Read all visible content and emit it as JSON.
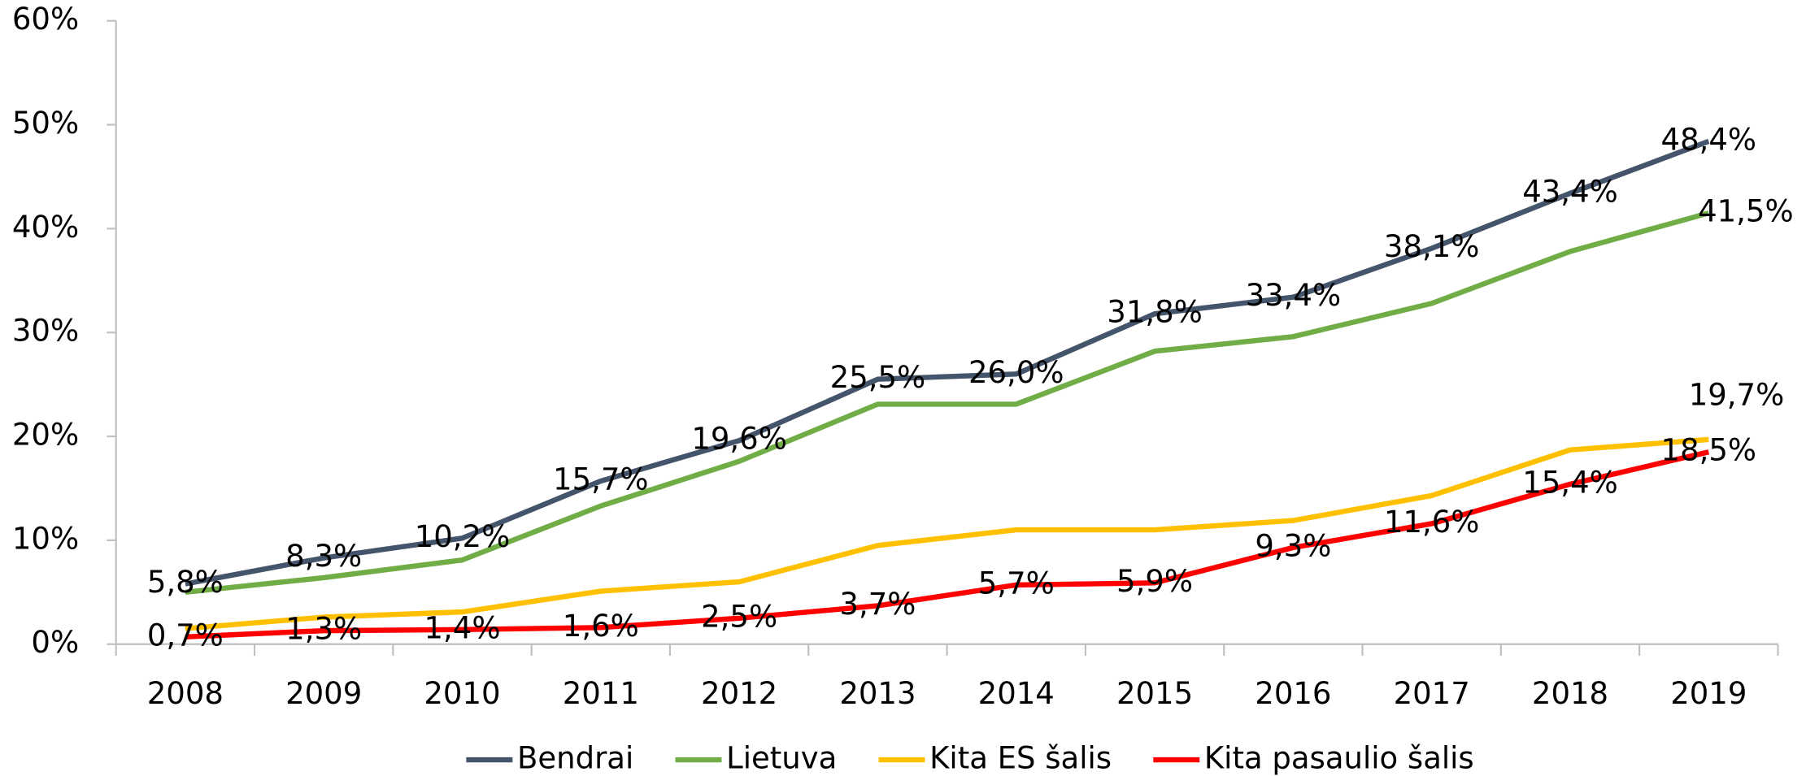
{
  "chart_data": {
    "type": "line",
    "categories": [
      "2008",
      "2009",
      "2010",
      "2011",
      "2012",
      "2013",
      "2014",
      "2015",
      "2016",
      "2017",
      "2018",
      "2019"
    ],
    "ylim": [
      0,
      60
    ],
    "yticks": [
      {
        "value": 0,
        "label": "0%"
      },
      {
        "value": 10,
        "label": "10%"
      },
      {
        "value": 20,
        "label": "20%"
      },
      {
        "value": 30,
        "label": "30%"
      },
      {
        "value": 40,
        "label": "40%"
      },
      {
        "value": 50,
        "label": "50%"
      },
      {
        "value": 60,
        "label": "60%"
      }
    ],
    "legend": "bottom",
    "series": [
      {
        "name": "Bendrai",
        "color": "#44546a",
        "values": [
          5.8,
          8.3,
          10.2,
          15.7,
          19.6,
          25.5,
          26.0,
          31.8,
          33.4,
          38.1,
          43.4,
          48.4
        ],
        "value_labels": [
          "5,8%",
          "8,3%",
          "10,2%",
          "15,7%",
          "19,6%",
          "25,5%",
          "26,0%",
          "31,8%",
          "33,4%",
          "38,1%",
          "43,4%",
          "48,4%"
        ]
      },
      {
        "name": "Lietuva",
        "color": "#70ad47",
        "values": [
          5.0,
          6.4,
          8.1,
          13.3,
          17.6,
          23.1,
          23.1,
          28.2,
          29.6,
          32.8,
          37.8,
          41.5
        ],
        "value_labels": [
          null,
          null,
          null,
          null,
          null,
          null,
          null,
          null,
          null,
          null,
          null,
          "41,5%"
        ]
      },
      {
        "name": "Kita ES šalis",
        "color": "#ffc000",
        "values": [
          1.5,
          2.6,
          3.1,
          5.1,
          6.0,
          9.5,
          11.0,
          11.0,
          11.9,
          14.3,
          18.7,
          19.7
        ],
        "value_labels": [
          null,
          null,
          null,
          null,
          null,
          null,
          null,
          null,
          null,
          null,
          null,
          "19,7%"
        ]
      },
      {
        "name": "Kita pasaulio šalis",
        "color": "#ff0000",
        "values": [
          0.7,
          1.3,
          1.4,
          1.6,
          2.5,
          3.7,
          5.7,
          5.9,
          9.3,
          11.6,
          15.4,
          18.5
        ],
        "value_labels": [
          "0,7%",
          "1,3%",
          "1,4%",
          "1,6%",
          "2,5%",
          "3,7%",
          "5,7%",
          "5,9%",
          "9,3%",
          "11,6%",
          "15,4%",
          "18,5%"
        ]
      }
    ]
  }
}
